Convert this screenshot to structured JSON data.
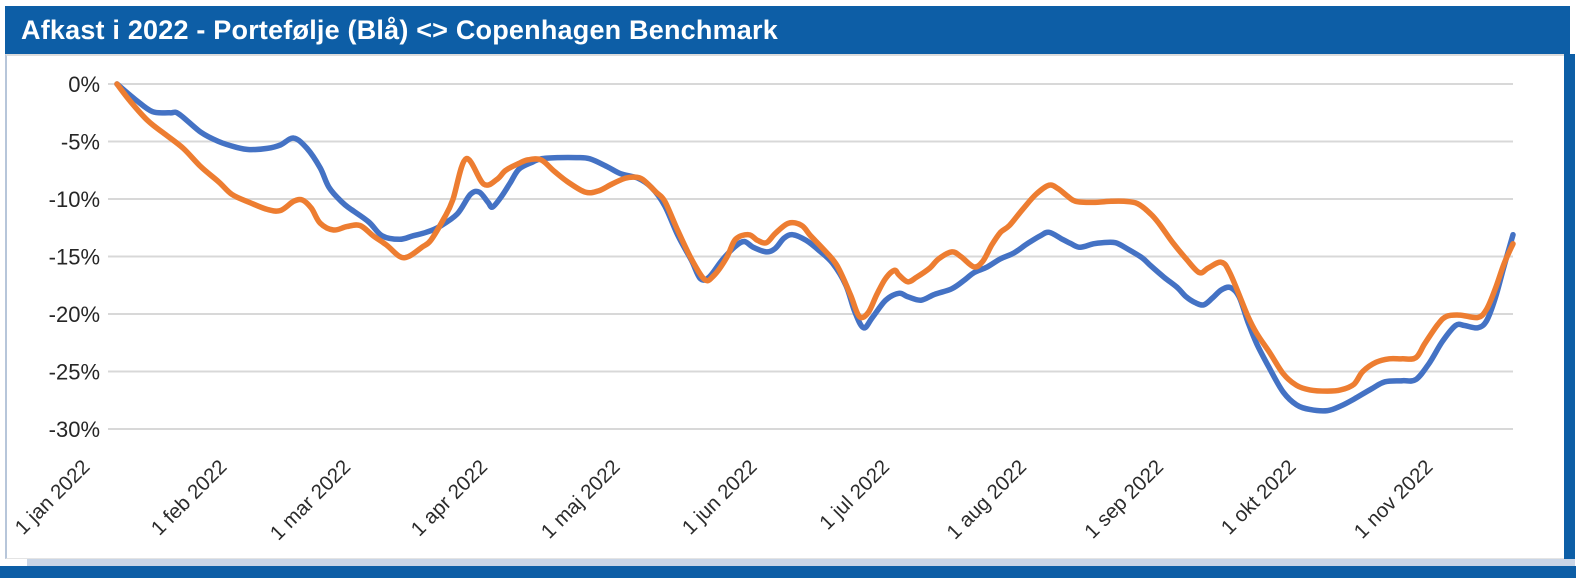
{
  "window": {
    "title": "Afkast i 2022 - Portefølje (Blå) <> Copenhagen Benchmark"
  },
  "colors": {
    "titlebar_bg": "#0D5EA6",
    "frame_bar": "#0D5EA6",
    "shadow_strip": "#C9D5E6",
    "gridline": "#D8D8D8",
    "axis_text": "#262626",
    "portfolio_blue": "#4472C4",
    "benchmark_orange": "#ED7D31"
  },
  "chart_data": {
    "type": "line",
    "title": "Afkast i 2022 - Portefølje (Blå) <> Copenhagen Benchmark",
    "xlabel": "",
    "ylabel": "",
    "grid": "horizontal-only",
    "legend": "none (series identified in title)",
    "ylim": [
      -30,
      0
    ],
    "y_ticks": [
      "0%",
      "-5%",
      "-10%",
      "-15%",
      "-20%",
      "-25%",
      "-30%"
    ],
    "y_tick_values": [
      0,
      -5,
      -10,
      -15,
      -20,
      -25,
      -30
    ],
    "x_unit": "days since 1 jan 2022",
    "x_range_days": [
      0,
      316
    ],
    "x_ticks": [
      {
        "label": "1 jan 2022",
        "day": 0
      },
      {
        "label": "1 feb 2022",
        "day": 31
      },
      {
        "label": "1 mar 2022",
        "day": 59
      },
      {
        "label": "1 apr 2022",
        "day": 90
      },
      {
        "label": "1 maj 2022",
        "day": 120
      },
      {
        "label": "1 jun 2022",
        "day": 151
      },
      {
        "label": "1 jul 2022",
        "day": 181
      },
      {
        "label": "1 aug 2022",
        "day": 212
      },
      {
        "label": "1 sep 2022",
        "day": 243
      },
      {
        "label": "1 okt 2022",
        "day": 273
      },
      {
        "label": "1 nov 2022",
        "day": 304
      }
    ],
    "series": [
      {
        "name": "Portefølje",
        "color": "#4472C4",
        "points": [
          [
            0,
            0
          ],
          [
            4,
            -1.3
          ],
          [
            8,
            -2.4
          ],
          [
            12,
            -2.5
          ],
          [
            14,
            -2.6
          ],
          [
            19,
            -4.2
          ],
          [
            23,
            -5.0
          ],
          [
            27,
            -5.5
          ],
          [
            30,
            -5.7
          ],
          [
            34,
            -5.6
          ],
          [
            37,
            -5.3
          ],
          [
            40,
            -4.7
          ],
          [
            43,
            -5.6
          ],
          [
            46,
            -7.3
          ],
          [
            48,
            -9.0
          ],
          [
            51,
            -10.3
          ],
          [
            53,
            -10.9
          ],
          [
            57,
            -12.0
          ],
          [
            60,
            -13.2
          ],
          [
            64,
            -13.5
          ],
          [
            67,
            -13.2
          ],
          [
            70,
            -12.9
          ],
          [
            73,
            -12.4
          ],
          [
            77,
            -11.3
          ],
          [
            80,
            -9.6
          ],
          [
            82,
            -9.4
          ],
          [
            84,
            -10.3
          ],
          [
            85,
            -10.7
          ],
          [
            87,
            -9.8
          ],
          [
            89,
            -8.6
          ],
          [
            91,
            -7.4
          ],
          [
            94,
            -6.8
          ],
          [
            96,
            -6.5
          ],
          [
            100,
            -6.4
          ],
          [
            104,
            -6.4
          ],
          [
            107,
            -6.5
          ],
          [
            111,
            -7.2
          ],
          [
            114,
            -7.8
          ],
          [
            118,
            -8.2
          ],
          [
            121,
            -9.0
          ],
          [
            124,
            -10.6
          ],
          [
            127,
            -13.2
          ],
          [
            130,
            -15.3
          ],
          [
            132,
            -16.9
          ],
          [
            134,
            -16.8
          ],
          [
            137,
            -15.3
          ],
          [
            140,
            -14.1
          ],
          [
            142,
            -13.7
          ],
          [
            144,
            -14.2
          ],
          [
            147,
            -14.6
          ],
          [
            149,
            -14.3
          ],
          [
            151,
            -13.4
          ],
          [
            153,
            -13.1
          ],
          [
            156,
            -13.6
          ],
          [
            159,
            -14.5
          ],
          [
            162,
            -15.6
          ],
          [
            165,
            -17.5
          ],
          [
            167,
            -19.8
          ],
          [
            169,
            -21.2
          ],
          [
            171,
            -20.3
          ],
          [
            174,
            -18.8
          ],
          [
            177,
            -18.2
          ],
          [
            179,
            -18.5
          ],
          [
            182,
            -18.8
          ],
          [
            185,
            -18.3
          ],
          [
            189,
            -17.8
          ],
          [
            192,
            -17.0
          ],
          [
            194,
            -16.4
          ],
          [
            197,
            -15.9
          ],
          [
            200,
            -15.2
          ],
          [
            203,
            -14.7
          ],
          [
            206,
            -13.9
          ],
          [
            209,
            -13.2
          ],
          [
            211,
            -12.9
          ],
          [
            214,
            -13.5
          ],
          [
            216,
            -13.9
          ],
          [
            218,
            -14.2
          ],
          [
            221,
            -13.9
          ],
          [
            223,
            -13.8
          ],
          [
            226,
            -13.8
          ],
          [
            229,
            -14.4
          ],
          [
            232,
            -15.1
          ],
          [
            234,
            -15.8
          ],
          [
            237,
            -16.8
          ],
          [
            240,
            -17.7
          ],
          [
            242,
            -18.5
          ],
          [
            244,
            -19.0
          ],
          [
            246,
            -19.2
          ],
          [
            248,
            -18.6
          ],
          [
            250,
            -17.9
          ],
          [
            252,
            -17.7
          ],
          [
            254,
            -18.5
          ],
          [
            256,
            -20.7
          ],
          [
            258,
            -22.6
          ],
          [
            261,
            -24.8
          ],
          [
            264,
            -26.8
          ],
          [
            267,
            -27.9
          ],
          [
            270,
            -28.3
          ],
          [
            274,
            -28.4
          ],
          [
            277,
            -28.0
          ],
          [
            280,
            -27.4
          ],
          [
            284,
            -26.5
          ],
          [
            287,
            -25.9
          ],
          [
            291,
            -25.8
          ],
          [
            294,
            -25.7
          ],
          [
            297,
            -24.3
          ],
          [
            300,
            -22.4
          ],
          [
            303,
            -21.0
          ],
          [
            305,
            -21.0
          ],
          [
            308,
            -21.2
          ],
          [
            310,
            -20.6
          ],
          [
            312,
            -18.6
          ],
          [
            314,
            -15.8
          ],
          [
            316,
            -13.1
          ]
        ]
      },
      {
        "name": "Copenhagen Benchmark",
        "color": "#ED7D31",
        "points": [
          [
            0,
            0
          ],
          [
            3,
            -1.5
          ],
          [
            7,
            -3.2
          ],
          [
            11,
            -4.4
          ],
          [
            15,
            -5.6
          ],
          [
            19,
            -7.2
          ],
          [
            23,
            -8.5
          ],
          [
            26,
            -9.6
          ],
          [
            30,
            -10.3
          ],
          [
            34,
            -10.9
          ],
          [
            37,
            -11.0
          ],
          [
            40,
            -10.2
          ],
          [
            42,
            -10.1
          ],
          [
            44,
            -10.8
          ],
          [
            46,
            -12.1
          ],
          [
            49,
            -12.7
          ],
          [
            52,
            -12.4
          ],
          [
            55,
            -12.3
          ],
          [
            58,
            -13.2
          ],
          [
            61,
            -14.0
          ],
          [
            64,
            -15.0
          ],
          [
            66,
            -15.0
          ],
          [
            69,
            -14.2
          ],
          [
            71,
            -13.6
          ],
          [
            74,
            -11.7
          ],
          [
            76,
            -10.1
          ],
          [
            79,
            -6.5
          ],
          [
            83,
            -8.7
          ],
          [
            86,
            -8.3
          ],
          [
            88,
            -7.5
          ],
          [
            91,
            -6.9
          ],
          [
            93,
            -6.6
          ],
          [
            96,
            -6.6
          ],
          [
            99,
            -7.6
          ],
          [
            102,
            -8.5
          ],
          [
            106,
            -9.4
          ],
          [
            109,
            -9.3
          ],
          [
            112,
            -8.7
          ],
          [
            115,
            -8.2
          ],
          [
            117,
            -8.1
          ],
          [
            119,
            -8.3
          ],
          [
            122,
            -9.4
          ],
          [
            124,
            -10.2
          ],
          [
            127,
            -12.8
          ],
          [
            130,
            -15.2
          ],
          [
            133,
            -17.0
          ],
          [
            135,
            -16.7
          ],
          [
            138,
            -15.1
          ],
          [
            140,
            -13.5
          ],
          [
            143,
            -13.1
          ],
          [
            145,
            -13.6
          ],
          [
            147,
            -13.8
          ],
          [
            149,
            -13.0
          ],
          [
            152,
            -12.1
          ],
          [
            155,
            -12.3
          ],
          [
            157,
            -13.2
          ],
          [
            160,
            -14.4
          ],
          [
            163,
            -15.8
          ],
          [
            166,
            -18.3
          ],
          [
            168,
            -20.2
          ],
          [
            170,
            -19.9
          ],
          [
            172,
            -18.3
          ],
          [
            174,
            -16.9
          ],
          [
            176,
            -16.2
          ],
          [
            177,
            -16.6
          ],
          [
            179,
            -17.2
          ],
          [
            181,
            -16.8
          ],
          [
            184,
            -16.0
          ],
          [
            186,
            -15.2
          ],
          [
            189,
            -14.6
          ],
          [
            191,
            -15.0
          ],
          [
            194,
            -15.9
          ],
          [
            196,
            -15.4
          ],
          [
            198,
            -14.0
          ],
          [
            200,
            -12.9
          ],
          [
            202,
            -12.3
          ],
          [
            205,
            -10.9
          ],
          [
            208,
            -9.6
          ],
          [
            211,
            -8.8
          ],
          [
            213,
            -9.1
          ],
          [
            215,
            -9.7
          ],
          [
            217,
            -10.2
          ],
          [
            221,
            -10.3
          ],
          [
            225,
            -10.2
          ],
          [
            228,
            -10.2
          ],
          [
            231,
            -10.4
          ],
          [
            234,
            -11.3
          ],
          [
            236,
            -12.2
          ],
          [
            239,
            -13.8
          ],
          [
            242,
            -15.2
          ],
          [
            245,
            -16.4
          ],
          [
            247,
            -16.0
          ],
          [
            250,
            -15.5
          ],
          [
            252,
            -16.5
          ],
          [
            256,
            -20.2
          ],
          [
            258,
            -21.7
          ],
          [
            261,
            -23.4
          ],
          [
            264,
            -25.2
          ],
          [
            267,
            -26.2
          ],
          [
            270,
            -26.6
          ],
          [
            274,
            -26.7
          ],
          [
            277,
            -26.6
          ],
          [
            280,
            -26.1
          ],
          [
            282,
            -25.0
          ],
          [
            285,
            -24.2
          ],
          [
            288,
            -23.9
          ],
          [
            291,
            -23.9
          ],
          [
            294,
            -23.8
          ],
          [
            296,
            -22.6
          ],
          [
            299,
            -20.9
          ],
          [
            301,
            -20.2
          ],
          [
            304,
            -20.1
          ],
          [
            308,
            -20.3
          ],
          [
            310,
            -19.6
          ],
          [
            312,
            -17.8
          ],
          [
            314,
            -15.6
          ],
          [
            316,
            -13.9
          ]
        ]
      }
    ]
  }
}
